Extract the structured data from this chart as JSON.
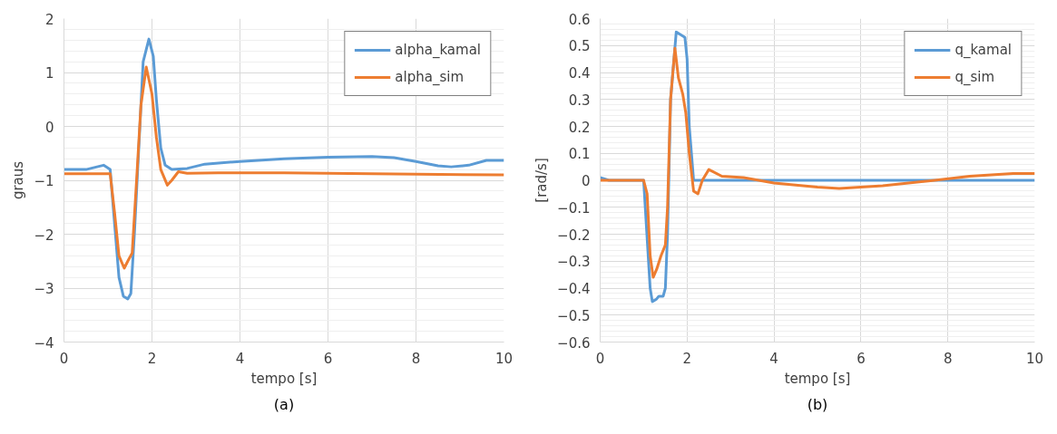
{
  "chart_data": [
    {
      "type": "line",
      "xlabel": "tempo [s]",
      "ylabel": "graus",
      "annotations": [
        "(a)"
      ],
      "xlim": [
        0,
        10
      ],
      "ylim": [
        -4,
        2
      ],
      "xticks": [
        0,
        2,
        4,
        6,
        8,
        10
      ],
      "yticks": [
        -4,
        -3,
        -2,
        -1,
        0,
        1,
        2
      ],
      "grid": true,
      "legend": "top right",
      "marker": "none",
      "line_style": "solid",
      "series": [
        {
          "name": "alpha_kamal",
          "color": "#5b9bd5",
          "x": [
            0,
            0.5,
            0.9,
            1.05,
            1.25,
            1.35,
            1.45,
            1.52,
            1.6,
            1.8,
            1.93,
            2.03,
            2.1,
            2.2,
            2.3,
            2.45,
            2.8,
            3.2,
            4,
            5,
            6,
            7,
            7.5,
            8,
            8.5,
            8.8,
            9.2,
            9.6,
            10
          ],
          "values": [
            -0.8,
            -0.8,
            -0.72,
            -0.8,
            -2.8,
            -3.15,
            -3.2,
            -3.1,
            -2.0,
            1.2,
            1.62,
            1.3,
            0.5,
            -0.4,
            -0.72,
            -0.8,
            -0.78,
            -0.7,
            -0.65,
            -0.6,
            -0.57,
            -0.56,
            -0.58,
            -0.65,
            -0.73,
            -0.75,
            -0.72,
            -0.63,
            -0.63
          ]
        },
        {
          "name": "alpha_sim",
          "color": "#ed7d31",
          "x": [
            0,
            1.05,
            1.15,
            1.25,
            1.37,
            1.45,
            1.55,
            1.65,
            1.75,
            1.87,
            2.0,
            2.1,
            2.2,
            2.35,
            2.45,
            2.6,
            2.8,
            3.5,
            5,
            7,
            10
          ],
          "values": [
            -0.88,
            -0.88,
            -1.6,
            -2.4,
            -2.63,
            -2.5,
            -2.35,
            -1.0,
            0.4,
            1.1,
            0.6,
            -0.2,
            -0.8,
            -1.09,
            -1.0,
            -0.84,
            -0.87,
            -0.86,
            -0.86,
            -0.88,
            -0.9
          ]
        }
      ]
    },
    {
      "type": "line",
      "xlabel": "tempo [s]",
      "ylabel": "[rad/s]",
      "annotations": [
        "(b)"
      ],
      "xlim": [
        0,
        10
      ],
      "ylim": [
        -0.6,
        0.6
      ],
      "xticks": [
        0,
        2,
        4,
        6,
        8,
        10
      ],
      "yticks": [
        -0.6,
        -0.5,
        -0.4,
        -0.3,
        -0.2,
        -0.1,
        0,
        0.1,
        0.2,
        0.3,
        0.4,
        0.5,
        0.6
      ],
      "grid": true,
      "legend": "top right",
      "marker": "none",
      "line_style": "solid",
      "series": [
        {
          "name": "q_kamal",
          "color": "#5b9bd5",
          "x": [
            0,
            0.2,
            1.0,
            1.15,
            1.2,
            1.3,
            1.35,
            1.45,
            1.5,
            1.55,
            1.62,
            1.75,
            1.85,
            1.95,
            2.0,
            2.05,
            2.15,
            2.3,
            4,
            6,
            8,
            10
          ],
          "values": [
            0.01,
            0,
            0,
            -0.4,
            -0.45,
            -0.44,
            -0.43,
            -0.43,
            -0.4,
            -0.2,
            0.3,
            0.55,
            0.54,
            0.53,
            0.45,
            0.2,
            0.0,
            0.0,
            0.0,
            0.0,
            0.0,
            0.0
          ]
        },
        {
          "name": "q_sim",
          "color": "#ed7d31",
          "x": [
            0,
            1.0,
            1.08,
            1.15,
            1.22,
            1.3,
            1.4,
            1.5,
            1.55,
            1.62,
            1.72,
            1.8,
            1.9,
            1.97,
            2.05,
            2.15,
            2.25,
            2.35,
            2.5,
            2.8,
            3.3,
            4,
            5,
            5.5,
            6.5,
            7.7,
            8.5,
            9.5,
            10
          ],
          "values": [
            0,
            0,
            -0.05,
            -0.28,
            -0.36,
            -0.33,
            -0.28,
            -0.24,
            -0.1,
            0.3,
            0.49,
            0.38,
            0.32,
            0.25,
            0.1,
            -0.04,
            -0.05,
            0.0,
            0.04,
            0.015,
            0.01,
            -0.01,
            -0.025,
            -0.03,
            -0.02,
            0.0,
            0.015,
            0.025,
            0.025
          ]
        }
      ]
    }
  ]
}
